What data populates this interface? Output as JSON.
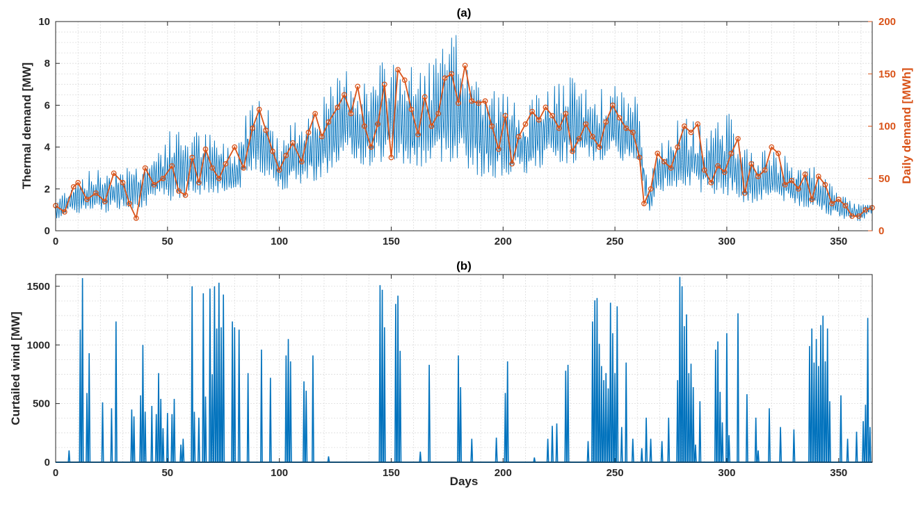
{
  "colors": {
    "blue": "#0072BD",
    "orange": "#D95319",
    "axis": "#262626",
    "grid": "#dcdcdc"
  },
  "chart_data": [
    {
      "type": "line",
      "title": "(a)",
      "xlabel": "",
      "ylabel": "Thermal demand [MW]",
      "ylabel_right": "Daily demand [MWh]",
      "xlim": [
        0,
        365
      ],
      "ylim": [
        0,
        10
      ],
      "ylim_right": [
        0,
        200
      ],
      "xticks": [
        0,
        50,
        100,
        150,
        200,
        250,
        300,
        350
      ],
      "yticks": [
        0,
        2,
        4,
        6,
        8,
        10
      ],
      "yticks_right": [
        0,
        50,
        100,
        150,
        200
      ],
      "grid": true,
      "series": [
        {
          "axis": "left",
          "style": "hourly-band",
          "x": [
            0,
            10,
            20,
            30,
            40,
            50,
            60,
            70,
            80,
            90,
            100,
            110,
            120,
            130,
            140,
            150,
            160,
            170,
            180,
            190,
            200,
            210,
            220,
            230,
            240,
            250,
            260,
            265,
            270,
            280,
            290,
            300,
            310,
            320,
            330,
            340,
            350,
            360,
            365
          ],
          "low": [
            0.5,
            0.7,
            0.7,
            0.9,
            1.0,
            1.2,
            1.4,
            1.6,
            1.6,
            2.6,
            1.8,
            2.0,
            2.3,
            3.0,
            2.8,
            3.0,
            2.6,
            2.8,
            3.0,
            2.2,
            2.3,
            2.4,
            3.0,
            3.0,
            3.0,
            3.2,
            2.8,
            0.8,
            1.6,
            2.0,
            1.6,
            1.4,
            1.0,
            1.5,
            1.0,
            0.9,
            0.5,
            0.4,
            0.8
          ],
          "high": [
            1.5,
            2.8,
            3.0,
            3.2,
            3.3,
            4.8,
            5.0,
            4.6,
            4.0,
            7.5,
            4.4,
            5.8,
            6.5,
            8.0,
            7.2,
            8.7,
            7.8,
            8.6,
            9.6,
            7.4,
            6.8,
            6.0,
            7.0,
            7.4,
            6.7,
            7.0,
            6.4,
            2.0,
            4.5,
            5.5,
            5.0,
            5.8,
            4.0,
            3.8,
            3.5,
            3.0,
            1.8,
            1.3,
            1.5
          ]
        },
        {
          "axis": "right",
          "style": "daily-markers",
          "x": [
            0,
            4,
            8,
            10,
            14,
            18,
            22,
            26,
            30,
            33,
            36,
            40,
            44,
            48,
            52,
            55,
            58,
            61,
            64,
            67,
            70,
            73,
            76,
            80,
            84,
            88,
            91,
            94,
            97,
            100,
            103,
            106,
            110,
            113,
            116,
            119,
            122,
            126,
            129,
            132,
            135,
            138,
            141,
            144,
            147,
            150,
            153,
            156,
            159,
            162,
            165,
            168,
            171,
            174,
            177,
            180,
            183,
            186,
            189,
            192,
            195,
            198,
            201,
            204,
            207,
            210,
            213,
            216,
            219,
            222,
            225,
            228,
            231,
            234,
            237,
            240,
            243,
            246,
            249,
            252,
            255,
            258,
            261,
            263,
            266,
            269,
            272,
            275,
            278,
            281,
            284,
            287,
            290,
            293,
            296,
            299,
            302,
            305,
            308,
            311,
            314,
            317,
            320,
            323,
            326,
            329,
            332,
            335,
            338,
            341,
            344,
            347,
            350,
            353,
            356,
            359,
            362,
            365
          ],
          "values": [
            24,
            18,
            42,
            46,
            30,
            36,
            28,
            55,
            46,
            26,
            12,
            60,
            44,
            50,
            62,
            38,
            34,
            70,
            46,
            78,
            60,
            50,
            64,
            80,
            60,
            98,
            116,
            96,
            76,
            58,
            72,
            84,
            66,
            94,
            112,
            90,
            104,
            118,
            130,
            112,
            138,
            100,
            80,
            102,
            140,
            70,
            154,
            144,
            116,
            92,
            128,
            100,
            112,
            146,
            150,
            122,
            158,
            124,
            122,
            124,
            100,
            78,
            110,
            64,
            90,
            102,
            114,
            106,
            118,
            110,
            98,
            112,
            76,
            88,
            102,
            90,
            80,
            104,
            120,
            108,
            98,
            94,
            70,
            26,
            40,
            74,
            66,
            60,
            80,
            100,
            94,
            102,
            58,
            46,
            62,
            56,
            74,
            88,
            36,
            64,
            52,
            58,
            80,
            74,
            44,
            48,
            40,
            54,
            30,
            52,
            44,
            26,
            30,
            24,
            14,
            14,
            20,
            22
          ]
        }
      ]
    },
    {
      "type": "line",
      "title": "(b)",
      "xlabel": "Days",
      "ylabel": "Curtailed wind [MW]",
      "xlim": [
        0,
        365
      ],
      "ylim": [
        0,
        1600
      ],
      "xticks": [
        0,
        50,
        100,
        150,
        200,
        250,
        300,
        350
      ],
      "yticks": [
        0,
        500,
        1000,
        1500
      ],
      "grid": true,
      "series": [
        {
          "style": "spikes",
          "x": [
            6,
            11,
            12,
            14,
            15,
            21,
            25,
            27,
            34,
            35,
            38,
            39,
            40,
            43,
            45,
            46,
            47,
            48,
            50,
            52,
            53,
            56,
            57,
            61,
            62,
            64,
            66,
            67,
            69,
            70,
            71,
            72,
            73,
            74,
            75,
            79,
            80,
            82,
            86,
            92,
            96,
            103,
            104,
            105,
            111,
            112,
            115,
            122,
            145,
            146,
            147,
            152,
            153,
            154,
            163,
            167,
            180,
            181,
            186,
            197,
            201,
            202,
            214,
            220,
            222,
            224,
            228,
            229,
            238,
            240,
            241,
            242,
            243,
            244,
            245,
            246,
            247,
            248,
            249,
            250,
            251,
            253,
            255,
            258,
            262,
            264,
            266,
            271,
            274,
            278,
            279,
            280,
            281,
            282,
            283,
            284,
            285,
            286,
            288,
            295,
            296,
            297,
            298,
            300,
            301,
            305,
            309,
            313,
            314,
            319,
            324,
            330,
            337,
            338,
            339,
            340,
            341,
            342,
            343,
            344,
            345,
            346,
            351,
            354,
            358,
            361,
            362,
            363,
            364
          ],
          "values": [
            100,
            1130,
            1570,
            590,
            930,
            510,
            460,
            1200,
            450,
            390,
            570,
            1000,
            430,
            480,
            410,
            760,
            540,
            290,
            420,
            410,
            540,
            150,
            200,
            1500,
            430,
            380,
            1440,
            560,
            1480,
            750,
            1500,
            1140,
            1530,
            1150,
            1430,
            1200,
            1150,
            1130,
            760,
            960,
            720,
            910,
            1050,
            860,
            690,
            610,
            910,
            50,
            1510,
            1470,
            1150,
            1350,
            1420,
            950,
            90,
            830,
            910,
            640,
            200,
            210,
            590,
            860,
            40,
            200,
            310,
            330,
            780,
            830,
            180,
            1200,
            1380,
            1400,
            1010,
            820,
            700,
            760,
            630,
            1360,
            1100,
            760,
            1330,
            300,
            850,
            200,
            120,
            380,
            200,
            180,
            380,
            700,
            1580,
            1500,
            1160,
            1260,
            760,
            840,
            640,
            150,
            520,
            960,
            1030,
            600,
            340,
            1100,
            230,
            1270,
            580,
            380,
            100,
            460,
            300,
            280,
            990,
            1140,
            850,
            1050,
            820,
            1170,
            1250,
            860,
            1140,
            520,
            570,
            200,
            260,
            350,
            490,
            1230,
            300
          ]
        }
      ]
    }
  ]
}
